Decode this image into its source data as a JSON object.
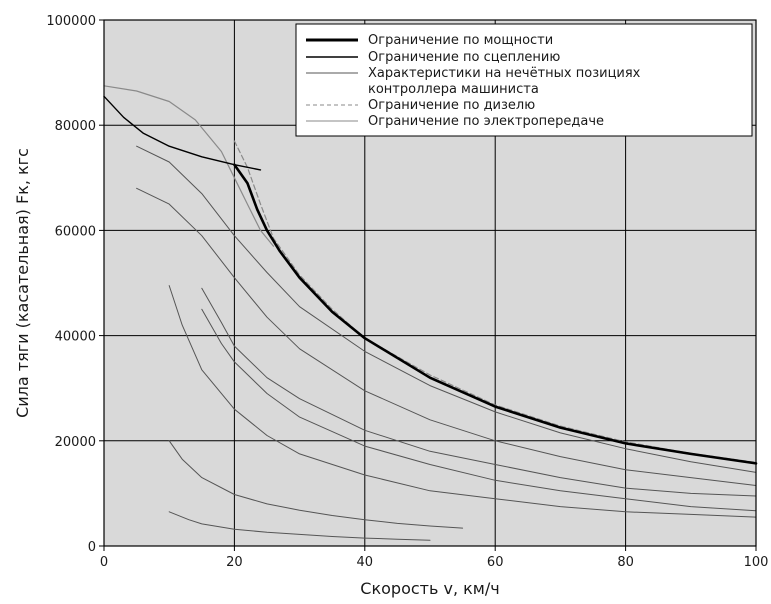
{
  "chart_data": {
    "type": "line",
    "title": "",
    "xlabel": "Скорость v, км/ч",
    "ylabel": "Сила тяги (касательная) Fк, кгс",
    "xlim": [
      0,
      100
    ],
    "ylim": [
      0,
      100000
    ],
    "xticks": [
      "0",
      "20",
      "40",
      "60",
      "80",
      "100"
    ],
    "yticks": [
      "0",
      "20000",
      "40000",
      "60000",
      "80000",
      "100000"
    ],
    "grid": true,
    "background": "#d9d9d9",
    "legend_position": "top-right",
    "legend": [
      {
        "label": "Ограничение по мощности",
        "color": "#000000",
        "style": "thick"
      },
      {
        "label": "Ограничение по сцеплению",
        "color": "#000000",
        "style": "solid"
      },
      {
        "label": "Характеристики на нечётных позициях контроллера машиниста",
        "color": "#555555",
        "style": "thin"
      },
      {
        "label": "Ограничение по дизелю",
        "color": "#8a8a8a",
        "style": "dashed"
      },
      {
        "label": "Ограничение по электропередаче",
        "color": "#8a8a8a",
        "style": "thin"
      }
    ],
    "series": [
      {
        "name": "Ограничение по мощности",
        "color": "#000000",
        "width": 2.6,
        "dash": "",
        "x": [
          20,
          22,
          23.5,
          25,
          27,
          30,
          35,
          40,
          50,
          60,
          70,
          80,
          90,
          100
        ],
        "y": [
          72500,
          69000,
          64000,
          60000,
          56000,
          51000,
          44500,
          39500,
          32000,
          26500,
          22500,
          19500,
          17500,
          15700
        ]
      },
      {
        "name": "Ограничение по сцеплению",
        "color": "#000000",
        "width": 1.4,
        "dash": "",
        "x": [
          0,
          3,
          6,
          10,
          15,
          20,
          24
        ],
        "y": [
          85500,
          81500,
          78500,
          76000,
          74000,
          72500,
          71500
        ]
      },
      {
        "name": "Ограничение по дизелю",
        "color": "#8a8a8a",
        "width": 1.2,
        "dash": "5,3",
        "x": [
          20,
          22,
          24,
          26,
          30,
          35,
          40,
          50,
          60,
          70,
          80,
          90,
          100
        ],
        "y": [
          77000,
          72000,
          65000,
          58500,
          51500,
          45000,
          39500,
          32500,
          26800,
          22800,
          19800,
          17600,
          15900
        ]
      },
      {
        "name": "Ограничение по электропередаче",
        "color": "#8a8a8a",
        "width": 1.2,
        "dash": "",
        "x": [
          0,
          5,
          10,
          14,
          18,
          20,
          22,
          24,
          26
        ],
        "y": [
          87500,
          86500,
          84500,
          81000,
          75000,
          70000,
          65000,
          60000,
          57000
        ]
      },
      {
        "name": "Характеристики на нечётных позициях контроллера машиниста",
        "color": "#555555",
        "width": 1.0,
        "dash": "",
        "x": [
          5,
          10,
          15,
          20,
          25,
          30,
          40,
          50,
          60,
          70,
          80,
          90,
          100
        ],
        "y": [
          76000,
          73000,
          67000,
          59000,
          52000,
          45500,
          37000,
          30500,
          25500,
          21500,
          18500,
          16000,
          14000
        ]
      },
      {
        "name": "",
        "color": "#555555",
        "width": 1.0,
        "dash": "",
        "x": [
          5,
          10,
          15,
          20,
          25,
          30,
          40,
          50,
          60,
          70,
          80,
          90,
          100
        ],
        "y": [
          68000,
          65000,
          59000,
          51000,
          43500,
          37500,
          29500,
          24000,
          20000,
          17000,
          14500,
          13000,
          11500
        ]
      },
      {
        "name": "",
        "color": "#555555",
        "width": 1.0,
        "dash": "",
        "x": [
          15,
          18,
          20,
          25,
          30,
          40,
          50,
          60,
          70,
          80,
          90,
          100
        ],
        "y": [
          49000,
          42500,
          38000,
          32000,
          28000,
          22000,
          18000,
          15500,
          13000,
          11000,
          10000,
          9500
        ]
      },
      {
        "name": "",
        "color": "#555555",
        "width": 1.0,
        "dash": "",
        "x": [
          15,
          18,
          20,
          25,
          30,
          40,
          50,
          60,
          70,
          80,
          90,
          100
        ],
        "y": [
          45000,
          38500,
          35000,
          29000,
          24500,
          19000,
          15500,
          12500,
          10500,
          9000,
          7500,
          6700
        ]
      },
      {
        "name": "",
        "color": "#555555",
        "width": 1.0,
        "dash": "",
        "x": [
          10,
          12,
          15,
          20,
          25,
          30,
          40,
          50,
          60,
          70,
          80,
          90,
          100
        ],
        "y": [
          49500,
          42000,
          33500,
          26000,
          21000,
          17500,
          13500,
          10500,
          9000,
          7500,
          6500,
          6000,
          5500
        ]
      },
      {
        "name": "",
        "color": "#555555",
        "width": 1.0,
        "dash": "",
        "x": [
          10,
          12,
          15,
          20,
          25,
          30,
          35,
          40,
          45,
          50,
          55
        ],
        "y": [
          20000,
          16500,
          13000,
          9800,
          8000,
          6800,
          5800,
          5000,
          4300,
          3800,
          3400
        ]
      },
      {
        "name": "",
        "color": "#555555",
        "width": 1.0,
        "dash": "",
        "x": [
          10,
          13,
          15,
          20,
          25,
          30,
          35,
          40,
          45,
          50
        ],
        "y": [
          6500,
          5000,
          4200,
          3200,
          2600,
          2200,
          1800,
          1500,
          1300,
          1100
        ]
      }
    ]
  }
}
